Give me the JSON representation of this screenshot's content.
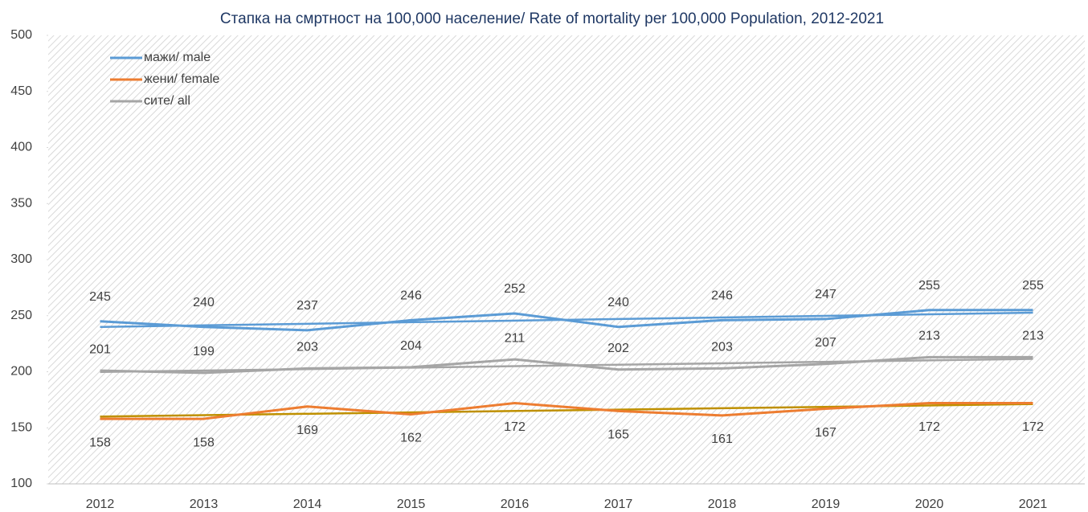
{
  "chart_data": {
    "type": "line",
    "title": "Стапка на смртност на 100,000 население/ Rate of mortality per 100,000 Population, 2012-2021",
    "categories": [
      "2012",
      "2013",
      "2014",
      "2015",
      "2016",
      "2017",
      "2018",
      "2019",
      "2020",
      "2021"
    ],
    "series": [
      {
        "name": "мажи/ male",
        "color": "#5b9bd5",
        "trend_color": "#5b9bd5",
        "label_position": "above",
        "values": [
          245,
          240,
          237,
          246,
          252,
          240,
          246,
          247,
          255,
          255
        ]
      },
      {
        "name": "жени/ female",
        "color": "#ed7d31",
        "trend_color": "#bf9000",
        "label_position": "below",
        "values": [
          158,
          158,
          169,
          162,
          172,
          165,
          161,
          167,
          172,
          172
        ]
      },
      {
        "name": "сите/ all",
        "color": "#a5a5a5",
        "trend_color": "#a5a5a5",
        "label_position": "above",
        "values": [
          201,
          199,
          203,
          204,
          211,
          202,
          203,
          207,
          213,
          213
        ]
      }
    ],
    "ylim": [
      100,
      500
    ],
    "yticks": [
      100,
      150,
      200,
      250,
      300,
      350,
      400,
      450,
      500
    ],
    "trendline": true,
    "legend": "top-left",
    "background": "hatched"
  }
}
